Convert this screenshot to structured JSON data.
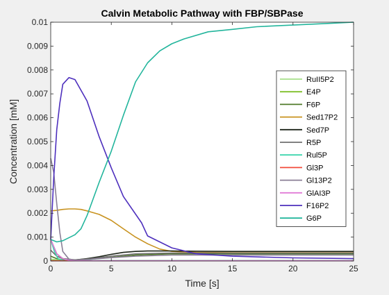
{
  "chart_data": {
    "type": "line",
    "title": "Calvin Metabolic Pathway with FBP/SBPase",
    "xlabel": "Time [s]",
    "ylabel": "Concentration [mM]",
    "xlim": [
      0,
      25
    ],
    "ylim": [
      0,
      0.01
    ],
    "xticks": [
      0,
      5,
      10,
      15,
      20,
      25
    ],
    "xtick_labels": [
      "0",
      "5",
      "10",
      "15",
      "20",
      "25"
    ],
    "yticks": [
      0,
      0.001,
      0.002,
      0.003,
      0.004,
      0.005,
      0.006,
      0.007,
      0.008,
      0.009,
      0.01
    ],
    "ytick_labels": [
      "0",
      "0.001",
      "0.002",
      "0.003",
      "0.004",
      "0.005",
      "0.006",
      "0.007",
      "0.008",
      "0.009",
      "0.01"
    ],
    "grid": false,
    "legend_position": "right",
    "series": [
      {
        "name": "RuII5P2",
        "color": "#a6e08a",
        "x": [
          0,
          0.5,
          1,
          2,
          5,
          10,
          25
        ],
        "y": [
          8e-05,
          5e-05,
          3e-05,
          2e-05,
          2e-05,
          2e-05,
          2e-05
        ]
      },
      {
        "name": "E4P",
        "color": "#7fbf2a",
        "x": [
          0,
          1,
          5,
          10,
          25
        ],
        "y": [
          2e-05,
          2e-05,
          2e-05,
          2e-05,
          2e-05
        ]
      },
      {
        "name": "F6P",
        "color": "#4f7a28",
        "x": [
          0,
          0.5,
          1,
          2,
          3,
          5,
          7,
          10,
          15,
          25
        ],
        "y": [
          0.0002,
          0.0001,
          5e-05,
          3e-05,
          6e-05,
          0.00015,
          0.00025,
          0.0003,
          0.0003,
          0.0003
        ]
      },
      {
        "name": "Sed17P2",
        "color": "#c8921e",
        "x": [
          0,
          0.5,
          1,
          1.5,
          2,
          2.5,
          3,
          4,
          5,
          6,
          7,
          8,
          9,
          10,
          12,
          15,
          25
        ],
        "y": [
          0.0021,
          0.00212,
          0.00216,
          0.00218,
          0.00218,
          0.00216,
          0.0021,
          0.00195,
          0.0017,
          0.00135,
          0.001,
          0.00072,
          0.0005,
          0.0004,
          0.00036,
          0.00035,
          0.00035
        ]
      },
      {
        "name": "Sed7P",
        "color": "#1c2418",
        "x": [
          0,
          0.5,
          1,
          1.5,
          2,
          3,
          4,
          5,
          6,
          7,
          8,
          10,
          12,
          15,
          25
        ],
        "y": [
          0.0009,
          0.0003,
          0.0001,
          3e-05,
          4e-05,
          0.0001,
          0.00018,
          0.00028,
          0.00036,
          0.0004,
          0.00042,
          0.00042,
          0.00041,
          0.0004,
          0.0004
        ]
      },
      {
        "name": "R5P",
        "color": "#6f6f6f",
        "x": [
          0,
          0.5,
          1,
          2,
          3,
          5,
          7,
          10,
          15,
          25
        ],
        "y": [
          0.00045,
          0.0002,
          0.0001,
          5e-05,
          8e-05,
          0.0002,
          0.0003,
          0.00033,
          0.00033,
          0.00033
        ]
      },
      {
        "name": "Rul5P",
        "color": "#3ed6ad",
        "x": [
          0,
          0.3,
          0.6,
          1,
          2,
          5,
          10,
          25
        ],
        "y": [
          0.0009,
          0.0004,
          0.0001,
          3e-05,
          2e-05,
          2e-05,
          2e-05,
          2e-05
        ]
      },
      {
        "name": "Gl3P",
        "color": "#f24b3a",
        "x": [
          0,
          1,
          5,
          10,
          25
        ],
        "y": [
          1e-05,
          1e-05,
          1e-05,
          1e-05,
          1e-05
        ]
      },
      {
        "name": "Gl13P2",
        "color": "#8a7f96",
        "x": [
          0,
          0.25,
          0.5,
          0.75,
          1,
          1.5,
          2,
          3,
          4,
          5,
          7,
          10,
          25
        ],
        "y": [
          0.0043,
          0.0037,
          0.0024,
          0.0012,
          0.0004,
          8e-05,
          3e-05,
          6e-05,
          0.0001,
          0.00014,
          0.0002,
          0.00025,
          0.00025
        ]
      },
      {
        "name": "GlAI3P",
        "color": "#e07ad6",
        "x": [
          0,
          0.25,
          0.5,
          1,
          1.5,
          2,
          5,
          10,
          25
        ],
        "y": [
          0.0009,
          0.0006,
          0.0003,
          0.0001,
          3e-05,
          1e-05,
          1e-05,
          1e-05,
          1e-05
        ]
      },
      {
        "name": "F16P2",
        "color": "#4d2fbd",
        "x": [
          0,
          0.25,
          0.5,
          0.75,
          1,
          1.5,
          2,
          3,
          4,
          5,
          6,
          7.5,
          8,
          10,
          12,
          15,
          20,
          25
        ],
        "y": [
          0.0009,
          0.0035,
          0.0055,
          0.0066,
          0.0074,
          0.00768,
          0.0076,
          0.0067,
          0.0052,
          0.0039,
          0.0027,
          0.0016,
          0.00105,
          0.00055,
          0.0003,
          0.0002,
          0.00013,
          0.0001
        ]
      },
      {
        "name": "G6P",
        "color": "#22b59c",
        "x": [
          0,
          0.5,
          1,
          2,
          2.5,
          3,
          4,
          5,
          6,
          7,
          8,
          9,
          10,
          11,
          13,
          15,
          17,
          20,
          23,
          25
        ],
        "y": [
          0.0009,
          0.0008,
          0.00085,
          0.0011,
          0.00135,
          0.0019,
          0.0033,
          0.0046,
          0.0061,
          0.0075,
          0.0083,
          0.0088,
          0.0091,
          0.0093,
          0.0096,
          0.0097,
          0.00981,
          0.00988,
          0.00995,
          0.01
        ]
      }
    ]
  }
}
